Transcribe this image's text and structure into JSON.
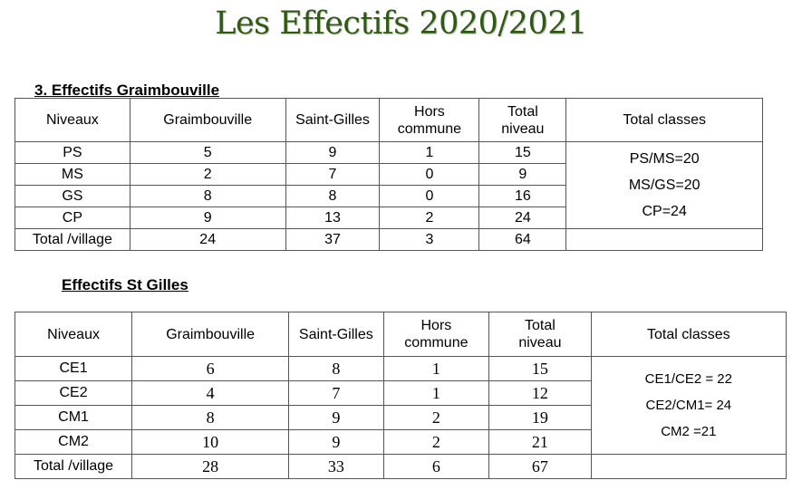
{
  "title": "Les Effectifs 2020/2021",
  "section1": {
    "title": "3.  Effectifs Graimbouville",
    "headers": [
      "Niveaux",
      "Graimbouville",
      "Saint-Gilles",
      "Hors commune",
      "Total niveau",
      "Total classes"
    ],
    "rows": [
      {
        "level": "PS",
        "graimbouville": "5",
        "saint_gilles": "9",
        "hors": "1",
        "total": "15"
      },
      {
        "level": "MS",
        "graimbouville": "2",
        "saint_gilles": "7",
        "hors": "0",
        "total": "9"
      },
      {
        "level": "GS",
        "graimbouville": "8",
        "saint_gilles": "8",
        "hors": "0",
        "total": "16"
      },
      {
        "level": "CP",
        "graimbouville": "9",
        "saint_gilles": "13",
        "hors": "2",
        "total": "24"
      },
      {
        "level": "Total /village",
        "graimbouville": "24",
        "saint_gilles": "37",
        "hors": "3",
        "total": "64"
      }
    ],
    "classes": [
      "PS/MS=20",
      "MS/GS=20",
      "CP=24"
    ]
  },
  "section2": {
    "title": "Effectifs St Gilles",
    "headers": [
      "Niveaux",
      "Graimbouville",
      "Saint-Gilles",
      "Hors commune",
      "Total niveau",
      "Total classes"
    ],
    "rows": [
      {
        "level": "CE1",
        "graimbouville": "6",
        "saint_gilles": "8",
        "hors": "1",
        "total": "15"
      },
      {
        "level": "CE2",
        "graimbouville": "4",
        "saint_gilles": "7",
        "hors": "1",
        "total": "12"
      },
      {
        "level": "CM1",
        "graimbouville": "8",
        "saint_gilles": "9",
        "hors": "2",
        "total": "19"
      },
      {
        "level": "CM2",
        "graimbouville": "10",
        "saint_gilles": "9",
        "hors": "2",
        "total": "21"
      },
      {
        "level": "Total /village",
        "graimbouville": "28",
        "saint_gilles": "33",
        "hors": "6",
        "total": "67"
      }
    ],
    "classes": [
      "CE1/CE2 = 22",
      "CE2/CM1= 24",
      "CM2 =21"
    ]
  }
}
